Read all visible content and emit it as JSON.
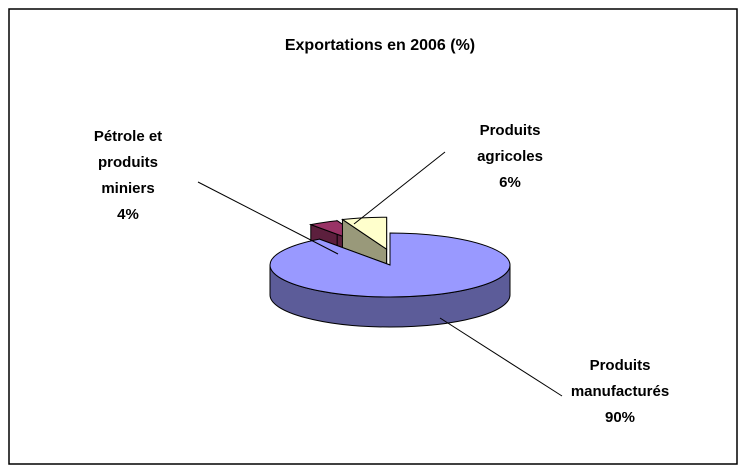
{
  "chart_data": {
    "type": "pie3d",
    "title": "Exportations en 2006 (%)",
    "categories": [
      "Produits manufacturés",
      "Pétrole et produits miniers",
      "Produits agricoles"
    ],
    "values": [
      90,
      4,
      6
    ],
    "value_labels": [
      "90%",
      "4%",
      "6%"
    ],
    "colors": [
      "#9999ff",
      "#993366",
      "#ffffcc"
    ]
  }
}
